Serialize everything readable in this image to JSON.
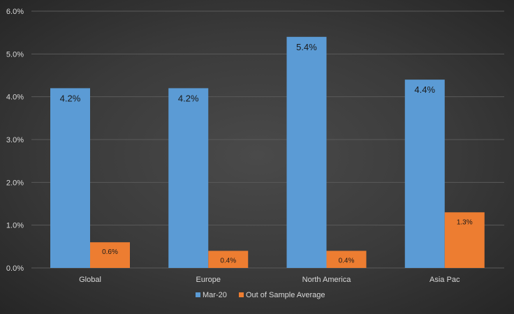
{
  "chart_data": {
    "type": "bar",
    "categories": [
      "Global",
      "Europe",
      "North America",
      "Asia Pac"
    ],
    "series": [
      {
        "name": "Mar-20",
        "values": [
          4.2,
          4.2,
          5.4,
          4.4
        ],
        "labels": [
          "4.2%",
          "4.2%",
          "5.4%",
          "4.4%"
        ],
        "color": "#5B9BD5"
      },
      {
        "name": "Out of Sample Average",
        "values": [
          0.6,
          0.4,
          0.4,
          1.3
        ],
        "labels": [
          "0.6%",
          "0.4%",
          "0.4%",
          "1.3%"
        ],
        "color": "#ED7D31"
      }
    ],
    "ylim": [
      0,
      6
    ],
    "yticks": [
      "0.0%",
      "1.0%",
      "2.0%",
      "3.0%",
      "4.0%",
      "5.0%",
      "6.0%"
    ],
    "grid": true,
    "legend": "bottom-center",
    "colors": {
      "text": "#d9d9d9",
      "gridline": "#5a5a5a",
      "bar_label_series1": "#1a1a1a",
      "bar_label_series2": "#1a1a1a"
    }
  }
}
